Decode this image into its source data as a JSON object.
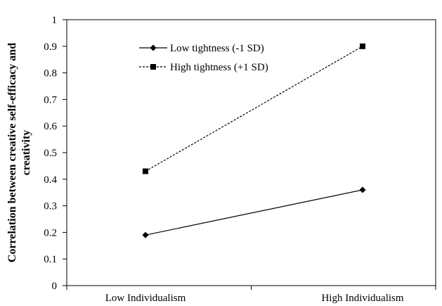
{
  "chart_data": {
    "type": "line",
    "categories": [
      "Low Individualism",
      "High Individualism"
    ],
    "series": [
      {
        "name": "Low tightness (-1 SD)",
        "values": [
          0.19,
          0.36
        ],
        "line": "solid",
        "marker": "diamond",
        "color": "#000000"
      },
      {
        "name": "High tightness (+1 SD)",
        "values": [
          0.43,
          0.9
        ],
        "line": "dashed",
        "marker": "square",
        "color": "#000000"
      }
    ],
    "title": "",
    "xlabel": "",
    "ylabel": "Correlation between creative self-efficacy and creativity",
    "ylabel_lines": [
      "Correlation between creative self-efficacy and",
      "creativity"
    ],
    "ylim": [
      0,
      1
    ],
    "yticks": [
      "0",
      "0.1",
      "0.2",
      "0.3",
      "0.4",
      "0.5",
      "0.6",
      "0.7",
      "0.8",
      "0.9",
      "1"
    ],
    "grid": false,
    "legend_position": "top-left inside"
  }
}
